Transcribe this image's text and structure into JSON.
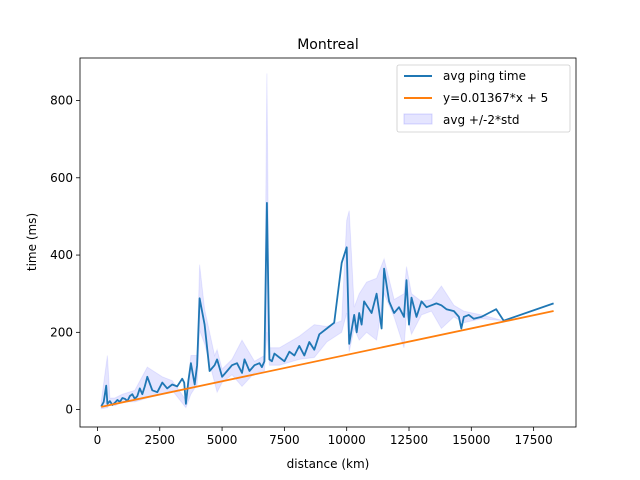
{
  "chart_data": {
    "type": "line",
    "title": "Montreal",
    "xlabel": "distance (km)",
    "ylabel": "time (ms)",
    "xlim": [
      -700,
      19200
    ],
    "ylim": [
      -45,
      910
    ],
    "xticks": [
      0,
      2500,
      5000,
      7500,
      10000,
      12500,
      15000,
      17500
    ],
    "yticks": [
      0,
      200,
      400,
      600,
      800
    ],
    "grid": false,
    "legend_position": "top-right",
    "series": [
      {
        "name": "avg ping time",
        "kind": "line",
        "color": "#1f77b4",
        "x": [
          150,
          250,
          350,
          400,
          500,
          600,
          700,
          800,
          900,
          1000,
          1100,
          1200,
          1300,
          1400,
          1500,
          1600,
          1700,
          1800,
          1900,
          2000,
          2200,
          2400,
          2600,
          2800,
          3000,
          3200,
          3400,
          3480,
          3550,
          3650,
          3750,
          3900,
          4000,
          4100,
          4300,
          4500,
          4700,
          4800,
          5000,
          5200,
          5400,
          5600,
          5800,
          5900,
          6100,
          6300,
          6500,
          6600,
          6700,
          6800,
          6900,
          7000,
          7100,
          7300,
          7500,
          7700,
          7900,
          8100,
          8300,
          8500,
          8700,
          8900,
          9200,
          9500,
          9800,
          10000,
          10100,
          10300,
          10400,
          10500,
          10600,
          10700,
          10800,
          11000,
          11200,
          11400,
          11500,
          11700,
          11900,
          12100,
          12300,
          12400,
          12500,
          12600,
          12800,
          13000,
          13200,
          13400,
          13600,
          13800,
          14000,
          14300,
          14500,
          14600,
          14700,
          14900,
          15100,
          15400,
          15700,
          16000,
          16300,
          18300
        ],
        "y": [
          8,
          20,
          62,
          15,
          22,
          12,
          18,
          25,
          20,
          30,
          28,
          22,
          35,
          40,
          28,
          35,
          55,
          40,
          60,
          85,
          50,
          45,
          70,
          55,
          65,
          60,
          80,
          70,
          15,
          75,
          120,
          65,
          115,
          288,
          220,
          100,
          115,
          130,
          85,
          100,
          115,
          120,
          95,
          130,
          100,
          115,
          120,
          110,
          125,
          535,
          130,
          125,
          145,
          135,
          125,
          150,
          140,
          165,
          140,
          175,
          155,
          195,
          210,
          225,
          380,
          420,
          170,
          245,
          200,
          250,
          220,
          280,
          270,
          250,
          300,
          210,
          365,
          280,
          250,
          265,
          240,
          335,
          220,
          290,
          240,
          280,
          265,
          270,
          275,
          270,
          260,
          255,
          240,
          210,
          240,
          245,
          235,
          240,
          250,
          260,
          230,
          275
        ]
      },
      {
        "name": "y=0.01367*x + 5",
        "kind": "line",
        "color": "#ff7f0e",
        "x": [
          150,
          18300
        ],
        "y": [
          7.05,
          255.16
        ]
      }
    ],
    "band": {
      "name": "avg +/-2*std",
      "color": "#0000ff",
      "x": [
        150,
        400,
        500,
        700,
        1000,
        1500,
        2000,
        2600,
        3000,
        3550,
        3750,
        4000,
        4100,
        4300,
        4700,
        4800,
        5000,
        5400,
        5800,
        6300,
        6700,
        6800,
        6900,
        7300,
        8100,
        8700,
        9200,
        9800,
        10000,
        10100,
        10300,
        10500,
        10800,
        11200,
        11500,
        11900,
        12300,
        12400,
        12600,
        13000,
        13400,
        13800,
        14300,
        14700,
        15400,
        16300,
        18300
      ],
      "upper": [
        20,
        140,
        30,
        30,
        40,
        50,
        110,
        85,
        75,
        25,
        140,
        140,
        375,
        260,
        140,
        155,
        105,
        130,
        180,
        125,
        140,
        870,
        160,
        160,
        190,
        220,
        215,
        230,
        490,
        515,
        265,
        300,
        330,
        340,
        390,
        285,
        300,
        370,
        300,
        280,
        285,
        320,
        270,
        255,
        245,
        230,
        275
      ],
      "lower": [
        2,
        5,
        15,
        10,
        20,
        20,
        30,
        40,
        50,
        5,
        40,
        65,
        205,
        170,
        70,
        45,
        70,
        90,
        60,
        95,
        100,
        200,
        115,
        115,
        130,
        135,
        175,
        200,
        250,
        150,
        210,
        180,
        200,
        180,
        300,
        240,
        160,
        250,
        195,
        245,
        255,
        210,
        240,
        225,
        235,
        230,
        275
      ]
    }
  }
}
